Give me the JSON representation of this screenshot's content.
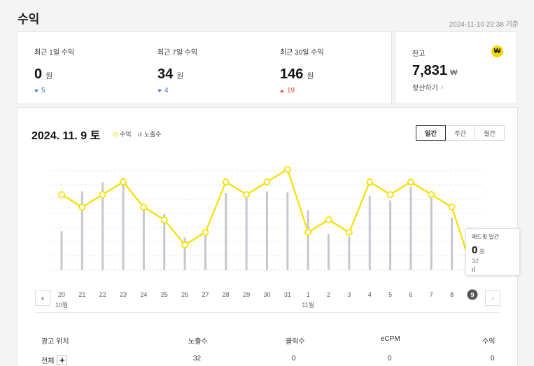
{
  "page": {
    "title": "수익",
    "timestamp": "2024-11-10 22:38 기준"
  },
  "summary": [
    {
      "label": "최근 1일 수익",
      "value": "0",
      "unit": "원",
      "delta": "5",
      "direction": "down"
    },
    {
      "label": "최근 7일 수익",
      "value": "34",
      "unit": "원",
      "delta": "4",
      "direction": "down"
    },
    {
      "label": "최근 30일 수익",
      "value": "146",
      "unit": "원",
      "delta": "19",
      "direction": "up"
    }
  ],
  "balance": {
    "label": "잔고",
    "icon_text": "₩",
    "icon": "won-coin-icon",
    "value": "7,831",
    "unit": "₩",
    "settle_label": "정산하기"
  },
  "chart_header": {
    "date": "2024. 11. 9 토",
    "legend_revenue": "수익",
    "legend_impressions": "노출수",
    "tabs": [
      {
        "label": "일간",
        "active": true
      },
      {
        "label": "주간",
        "active": false
      },
      {
        "label": "월간",
        "active": false
      }
    ]
  },
  "chart_data": {
    "type": "line+bar",
    "x": [
      "20",
      "21",
      "22",
      "23",
      "24",
      "25",
      "26",
      "27",
      "28",
      "29",
      "30",
      "31",
      "1",
      "2",
      "3",
      "4",
      "5",
      "6",
      "7",
      "8",
      "9"
    ],
    "month_labels": [
      {
        "index": 0,
        "label": "10월"
      },
      {
        "index": 12,
        "label": "11월"
      }
    ],
    "selected_index": 20,
    "series": [
      {
        "name": "수익",
        "kind": "line",
        "color": "#f5e000",
        "values": [
          6,
          5,
          6,
          7,
          5,
          4,
          2,
          3,
          7,
          6,
          7,
          8,
          3,
          4,
          3,
          7,
          6,
          7,
          6,
          5,
          0
        ]
      },
      {
        "name": "노출수",
        "kind": "bar",
        "color": "#c5c8ce",
        "values": [
          43,
          87,
          97,
          102,
          68,
          62,
          36,
          38,
          85,
          86,
          87,
          86,
          66,
          40,
          37,
          82,
          77,
          92,
          81,
          58,
          32
        ]
      }
    ]
  },
  "tooltip": {
    "title": "애드핏 일간",
    "value": "0",
    "unit": "원",
    "impressions": "32"
  },
  "table": {
    "headers": {
      "position": "광고 위치",
      "impressions": "노출수",
      "clicks": "클릭수",
      "ecpm": "eCPM",
      "revenue": "수익"
    },
    "rows": [
      {
        "position": "전체",
        "expand_label": "+",
        "impressions": "32",
        "clicks": "0",
        "ecpm": "0",
        "revenue": "0"
      }
    ]
  }
}
